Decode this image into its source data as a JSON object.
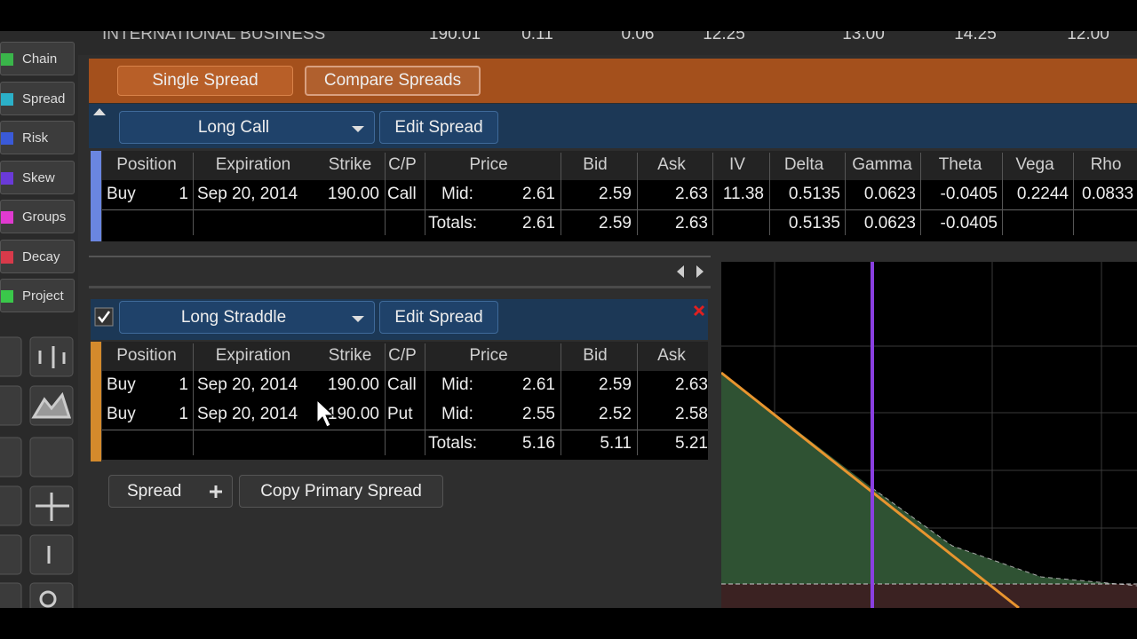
{
  "header": {
    "title": "INTERNATIONAL BUSINESS",
    "quotes": [
      "190.01",
      "0.11",
      "0.06",
      "12.25",
      "13.00",
      "14.25",
      "12.00"
    ]
  },
  "nav": [
    "Chain",
    "Spread",
    "Risk",
    "Skew",
    "Groups",
    "Decay",
    "Project"
  ],
  "tabs": [
    "Single Spread",
    "Compare Spreads"
  ],
  "primary": {
    "strategy": "Long Call",
    "edit": "Edit Spread",
    "columns": [
      "Position",
      "Expiration",
      "Strike",
      "C/P",
      "Price",
      "Bid",
      "Ask",
      "IV",
      "Delta",
      "Gamma",
      "Theta",
      "Vega",
      "Rho"
    ],
    "rows": [
      [
        "Buy",
        "1",
        "Sep 20, 2014",
        "190.00",
        "Call",
        "Mid:",
        "2.61",
        "2.59",
        "2.63",
        "11.38",
        "0.5135",
        "0.0623",
        "-0.0405",
        "0.2244",
        "0.0833"
      ]
    ],
    "totals": {
      "label": "Totals:",
      "price": "2.61",
      "bid": "2.59",
      "ask": "2.63",
      "delta": "0.5135",
      "gamma": "0.0623",
      "theta": "-0.0405"
    }
  },
  "compare": {
    "strategy": "Long Straddle",
    "edit": "Edit Spread",
    "columns": [
      "Position",
      "Expiration",
      "Strike",
      "C/P",
      "Price",
      "Bid",
      "Ask"
    ],
    "rows": [
      [
        "Buy",
        "1",
        "Sep 20, 2014",
        "190.00",
        "Call",
        "Mid:",
        "2.61",
        "2.59",
        "2.63"
      ],
      [
        "Buy",
        "1",
        "Sep 20, 2014",
        "190.00",
        "Put",
        "Mid:",
        "2.55",
        "2.52",
        "2.58"
      ]
    ],
    "totals": {
      "label": "Totals:",
      "price": "5.16",
      "bid": "5.11",
      "ask": "5.21"
    }
  },
  "actions": [
    "Spread",
    "Copy Primary Spread"
  ]
}
